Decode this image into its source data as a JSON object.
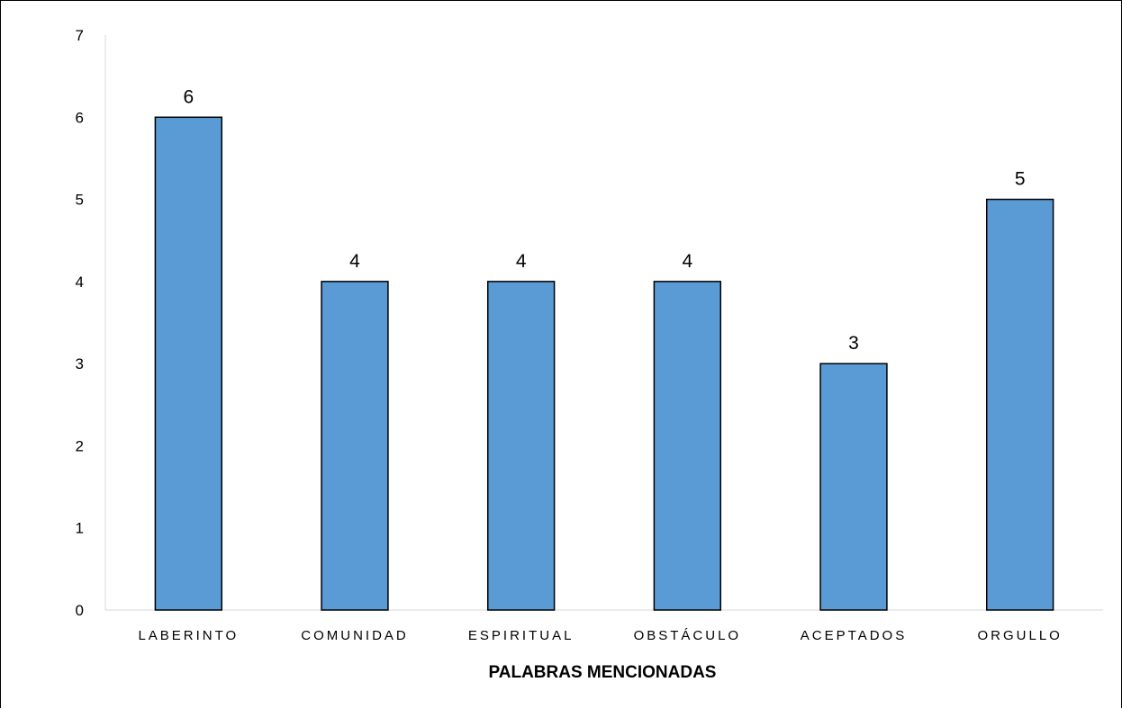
{
  "chart_data": {
    "type": "bar",
    "categories": [
      "LABERINTO",
      "COMUNIDAD",
      "ESPIRITUAL",
      "OBSTÁCULO",
      "ACEPTADOS",
      "ORGULLO"
    ],
    "values": [
      6,
      4,
      4,
      4,
      3,
      5
    ],
    "data_labels": [
      "6",
      "4",
      "4",
      "4",
      "3",
      "5"
    ],
    "xlabel": "PALABRAS MENCIONADAS",
    "ylabel": "",
    "ylim": [
      0,
      7
    ],
    "yticks": [
      "0",
      "1",
      "2",
      "3",
      "4",
      "5",
      "6",
      "7"
    ],
    "grid": false,
    "legend": "none",
    "colors": {
      "bar_fill": "#5b9bd5",
      "bar_stroke": "#000000",
      "axis": "#d9d9d9"
    }
  }
}
